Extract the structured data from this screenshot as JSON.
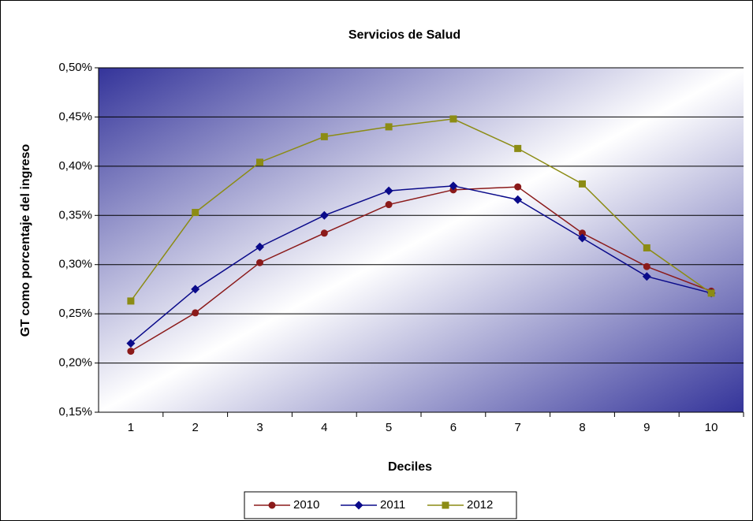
{
  "chart_data": {
    "type": "line",
    "title": "Servicios de Salud",
    "x_label": "Deciles",
    "y_label": "GT como porcentaje del ingreso",
    "categories": [
      "1",
      "2",
      "3",
      "4",
      "5",
      "6",
      "7",
      "8",
      "9",
      "10"
    ],
    "series": [
      {
        "name": "2010",
        "color": "#8b1a1a",
        "marker": "circle",
        "values": [
          0.212,
          0.251,
          0.302,
          0.332,
          0.361,
          0.376,
          0.379,
          0.332,
          0.298,
          0.273
        ]
      },
      {
        "name": "2011",
        "color": "#0a0a8a",
        "marker": "diamond",
        "values": [
          0.22,
          0.275,
          0.318,
          0.35,
          0.375,
          0.38,
          0.366,
          0.327,
          0.288,
          0.271
        ]
      },
      {
        "name": "2012",
        "color": "#8c8c14",
        "marker": "square",
        "values": [
          0.263,
          0.353,
          0.404,
          0.43,
          0.44,
          0.448,
          0.418,
          0.382,
          0.317,
          0.271
        ]
      }
    ],
    "ylim": [
      0.15,
      0.5
    ],
    "yticks": [
      {
        "value": 0.15,
        "label": "0,15%"
      },
      {
        "value": 0.2,
        "label": "0,20%"
      },
      {
        "value": 0.25,
        "label": "0,25%"
      },
      {
        "value": 0.3,
        "label": "0,30%"
      },
      {
        "value": 0.35,
        "label": "0,35%"
      },
      {
        "value": 0.4,
        "label": "0,40%"
      },
      {
        "value": 0.45,
        "label": "0,45%"
      },
      {
        "value": 0.5,
        "label": "0,50%"
      }
    ],
    "grid": true,
    "legend": "bottom"
  }
}
